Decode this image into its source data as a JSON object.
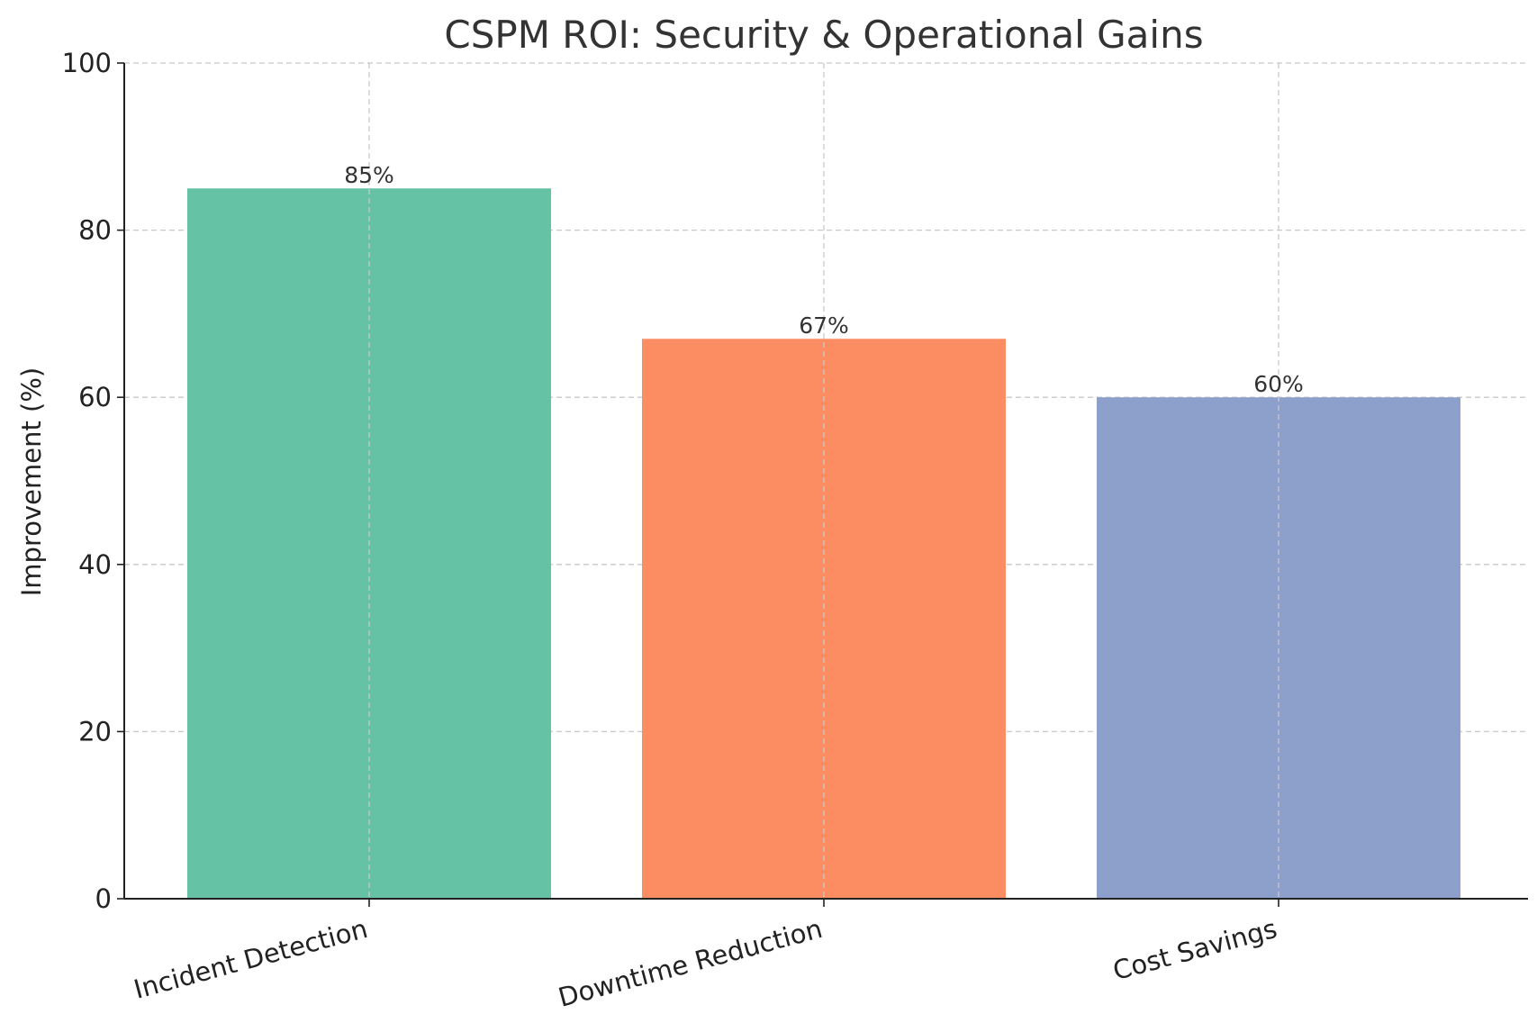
{
  "chart_data": {
    "type": "bar",
    "title": "CSPM ROI: Security & Operational Gains",
    "xlabel": "",
    "ylabel": "Improvement (%)",
    "categories": [
      "Incident Detection",
      "Downtime Reduction",
      "Cost Savings"
    ],
    "values": [
      85,
      67,
      60
    ],
    "value_labels": [
      "85%",
      "67%",
      "60%"
    ],
    "colors": [
      "#66c2a5",
      "#fc8d62",
      "#8da0cb"
    ],
    "ylim": [
      0,
      100
    ],
    "yticks": [
      0,
      20,
      40,
      60,
      80,
      100
    ],
    "grid": true,
    "legend": "none"
  }
}
